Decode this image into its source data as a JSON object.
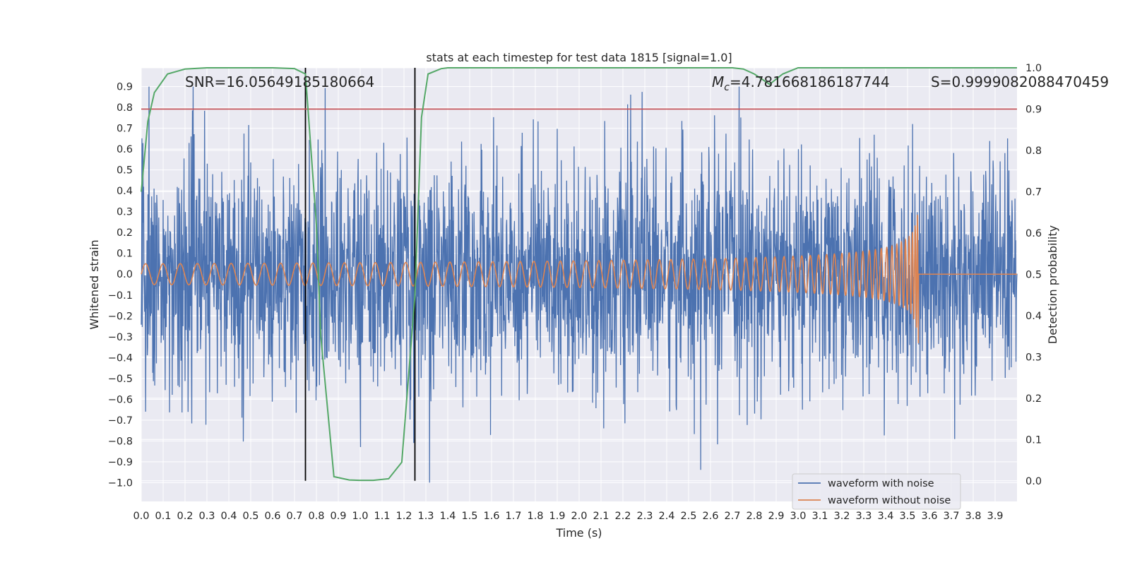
{
  "chart_data": {
    "type": "line",
    "title": "stats at each timestep for test data 1815 [signal=1.0]",
    "xlabel": "Time (s)",
    "ylabel": "Whitened strain",
    "y2label": "Detection probability",
    "xlim": [
      0.0,
      4.0
    ],
    "ylim": [
      -1.09,
      0.99
    ],
    "y2lim": [
      -0.05,
      1.0
    ],
    "x_ticks": [
      "0.0",
      "0.1",
      "0.2",
      "0.3",
      "0.4",
      "0.5",
      "0.6",
      "0.7",
      "0.8",
      "0.9",
      "1.0",
      "1.1",
      "1.2",
      "1.3",
      "1.4",
      "1.5",
      "1.6",
      "1.7",
      "1.8",
      "1.9",
      "2.0",
      "2.1",
      "2.2",
      "2.3",
      "2.4",
      "2.5",
      "2.6",
      "2.7",
      "2.8",
      "2.9",
      "3.0",
      "3.1",
      "3.2",
      "3.3",
      "3.4",
      "3.5",
      "3.6",
      "3.7",
      "3.8",
      "3.9"
    ],
    "y_ticks": [
      "−1.0",
      "−0.9",
      "−0.8",
      "−0.7",
      "−0.6",
      "−0.5",
      "−0.4",
      "−0.3",
      "−0.2",
      "−0.1",
      "0.0",
      "0.1",
      "0.2",
      "0.3",
      "0.4",
      "0.5",
      "0.6",
      "0.7",
      "0.8",
      "0.9"
    ],
    "y2_ticks": [
      "0.0",
      "0.1",
      "0.2",
      "0.3",
      "0.4",
      "0.5",
      "0.6",
      "0.7",
      "0.8",
      "0.9",
      "1.0"
    ],
    "annotations": {
      "snr": "SNR=16.05649185180664",
      "mc_symbol": "M",
      "mc_sub": "c",
      "mc_value": "=4.781668186187744",
      "s": "S=0.9999082088470459"
    },
    "threshold": {
      "value": 0.9,
      "axis": "y2",
      "color": "#c44e52"
    },
    "vertical_markers": {
      "x": [
        0.75,
        1.25
      ],
      "color": "#000000"
    },
    "series": [
      {
        "name": "waveform with noise",
        "color": "#4c72b0",
        "description": "whitened noisy strain, amplitude roughly within -1.0 to 0.9",
        "amplitude_range": [
          -1.0,
          0.9
        ]
      },
      {
        "name": "waveform without noise",
        "color": "#dd8452",
        "description": "chirp signal growing from ~0.05 to ~0.4 amplitude, merger at ~3.55 s then flat",
        "merger_time": 3.55,
        "start_amplitude": 0.05,
        "peak_amplitude": 0.4
      },
      {
        "name": "detection probability",
        "color": "#55a868",
        "axis": "y2",
        "x": [
          0.0,
          0.03,
          0.06,
          0.12,
          0.2,
          0.3,
          0.4,
          0.5,
          0.6,
          0.7,
          0.75,
          0.8,
          0.82,
          0.88,
          0.95,
          1.0,
          1.06,
          1.13,
          1.19,
          1.25,
          1.28,
          1.31,
          1.37,
          1.4,
          1.5,
          2.0,
          2.5,
          2.7,
          2.75,
          2.8,
          2.87,
          2.93,
          3.0,
          3.1,
          3.5,
          4.0
        ],
        "values": [
          0.7,
          0.87,
          0.94,
          0.985,
          0.997,
          1.0,
          1.0,
          1.0,
          1.0,
          0.998,
          0.985,
          0.62,
          0.35,
          0.01,
          0.002,
          0.001,
          0.001,
          0.005,
          0.045,
          0.45,
          0.88,
          0.985,
          0.998,
          1.0,
          1.0,
          1.0,
          1.0,
          1.0,
          0.997,
          0.985,
          0.96,
          0.985,
          1.0,
          1.0,
          1.0,
          1.0
        ]
      }
    ],
    "legend": {
      "position": "lower-right",
      "entries": [
        "waveform with noise",
        "waveform without noise"
      ]
    },
    "style": {
      "background": "#eaeaf2",
      "grid": "#ffffff"
    }
  }
}
